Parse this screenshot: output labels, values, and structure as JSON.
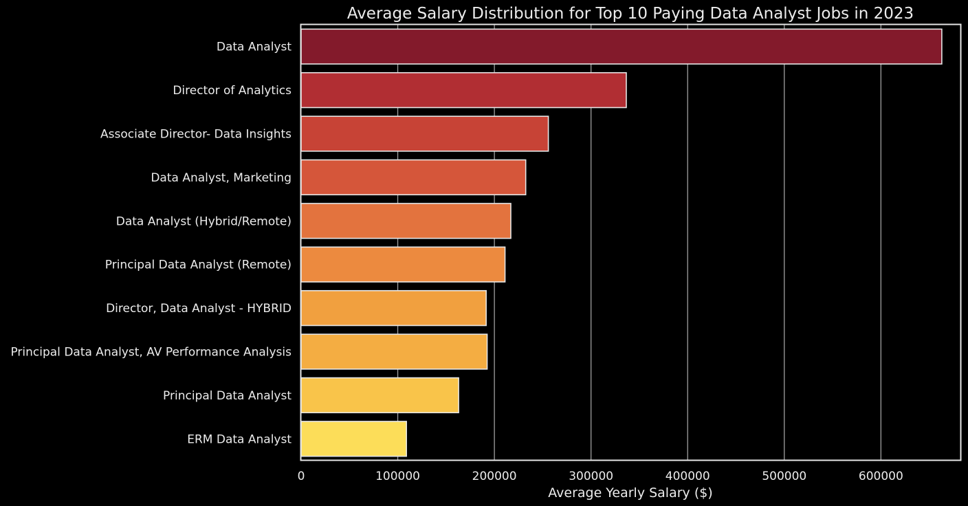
{
  "chart_data": {
    "type": "bar",
    "orientation": "horizontal",
    "title": "Average Salary Distribution for Top 10 Paying Data Analyst Jobs in 2023",
    "xlabel": "Average Yearly Salary ($)",
    "ylabel": "",
    "categories": [
      "Data Analyst",
      "Director of Analytics",
      "Associate Director- Data Insights",
      "Data Analyst, Marketing",
      "Data Analyst (Hybrid/Remote)",
      "Principal Data Analyst (Remote)",
      "Director, Data Analyst - HYBRID",
      "Principal Data Analyst, AV Performance Analysis",
      "Principal Data Analyst",
      "ERM Data Analyst"
    ],
    "values": [
      663000,
      336500,
      255829.5,
      232423,
      217000,
      211000,
      191500,
      192500,
      163000,
      109000
    ],
    "xlim": [
      0,
      683000
    ],
    "xticks": [
      0,
      100000,
      200000,
      300000,
      400000,
      500000,
      600000
    ],
    "xtick_labels": [
      "0",
      "100000",
      "200000",
      "300000",
      "400000",
      "500000",
      "600000"
    ],
    "grid": "vertical",
    "bar_colors": [
      "#831a2b",
      "#b12e33",
      "#c74336",
      "#d5563a",
      "#e3733e",
      "#ec8a3f",
      "#f1a03f",
      "#f4ad42",
      "#f9c44a",
      "#fcdd59"
    ],
    "bar_edge_color": "#e6e6e6",
    "grid_color": "#a0a0a0",
    "text_color": "#ececec",
    "background": "#000000"
  }
}
